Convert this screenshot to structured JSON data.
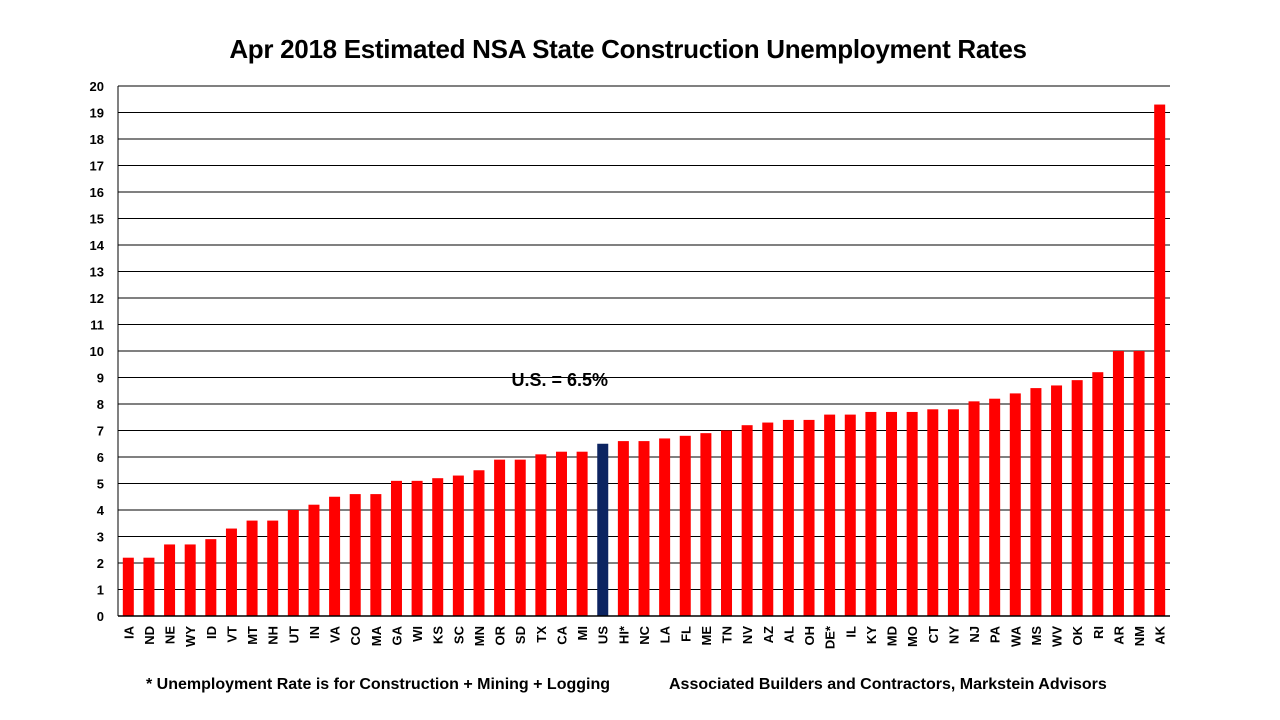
{
  "chart_data": {
    "type": "bar",
    "title": "Apr 2018 Estimated NSA State Construction Unemployment Rates",
    "categories": [
      "IA",
      "ND",
      "NE",
      "WY",
      "ID",
      "VT",
      "MT",
      "NH",
      "UT",
      "IN",
      "VA",
      "CO",
      "MA",
      "GA",
      "WI",
      "KS",
      "SC",
      "MN",
      "OR",
      "SD",
      "TX",
      "CA",
      "MI",
      "US",
      "HI*",
      "NC",
      "LA",
      "FL",
      "ME",
      "TN",
      "NV",
      "AZ",
      "AL",
      "OH",
      "DE*",
      "IL",
      "KY",
      "MD",
      "MO",
      "CT",
      "NY",
      "NJ",
      "PA",
      "WA",
      "MS",
      "WV",
      "OK",
      "RI",
      "AR",
      "NM",
      "AK"
    ],
    "values": [
      2.2,
      2.2,
      2.7,
      2.7,
      2.9,
      3.3,
      3.6,
      3.6,
      4.0,
      4.2,
      4.5,
      4.6,
      4.6,
      5.1,
      5.1,
      5.2,
      5.3,
      5.5,
      5.9,
      5.9,
      6.1,
      6.2,
      6.2,
      6.5,
      6.6,
      6.6,
      6.7,
      6.8,
      6.9,
      7.0,
      7.2,
      7.3,
      7.4,
      7.4,
      7.6,
      7.6,
      7.7,
      7.7,
      7.7,
      7.8,
      7.8,
      8.1,
      8.2,
      8.4,
      8.6,
      8.7,
      8.9,
      9.2,
      10.0,
      10.0,
      19.3
    ],
    "highlight_category": "US",
    "ylim": [
      0,
      20
    ],
    "yticks": [
      0,
      1,
      2,
      3,
      4,
      5,
      6,
      7,
      8,
      9,
      10,
      11,
      12,
      13,
      14,
      15,
      16,
      17,
      18,
      19,
      20
    ],
    "grid": true,
    "xlabel": "",
    "ylabel": "",
    "annotation": "U.S. = 6.5%",
    "colors": {
      "bar": "#ff0000",
      "highlight": "#0c2461",
      "grid": "#000000"
    }
  },
  "footnotes": {
    "left": "* Unemployment Rate is for Construction + Mining + Logging",
    "right": "Associated Builders and Contractors, Markstein Advisors"
  }
}
